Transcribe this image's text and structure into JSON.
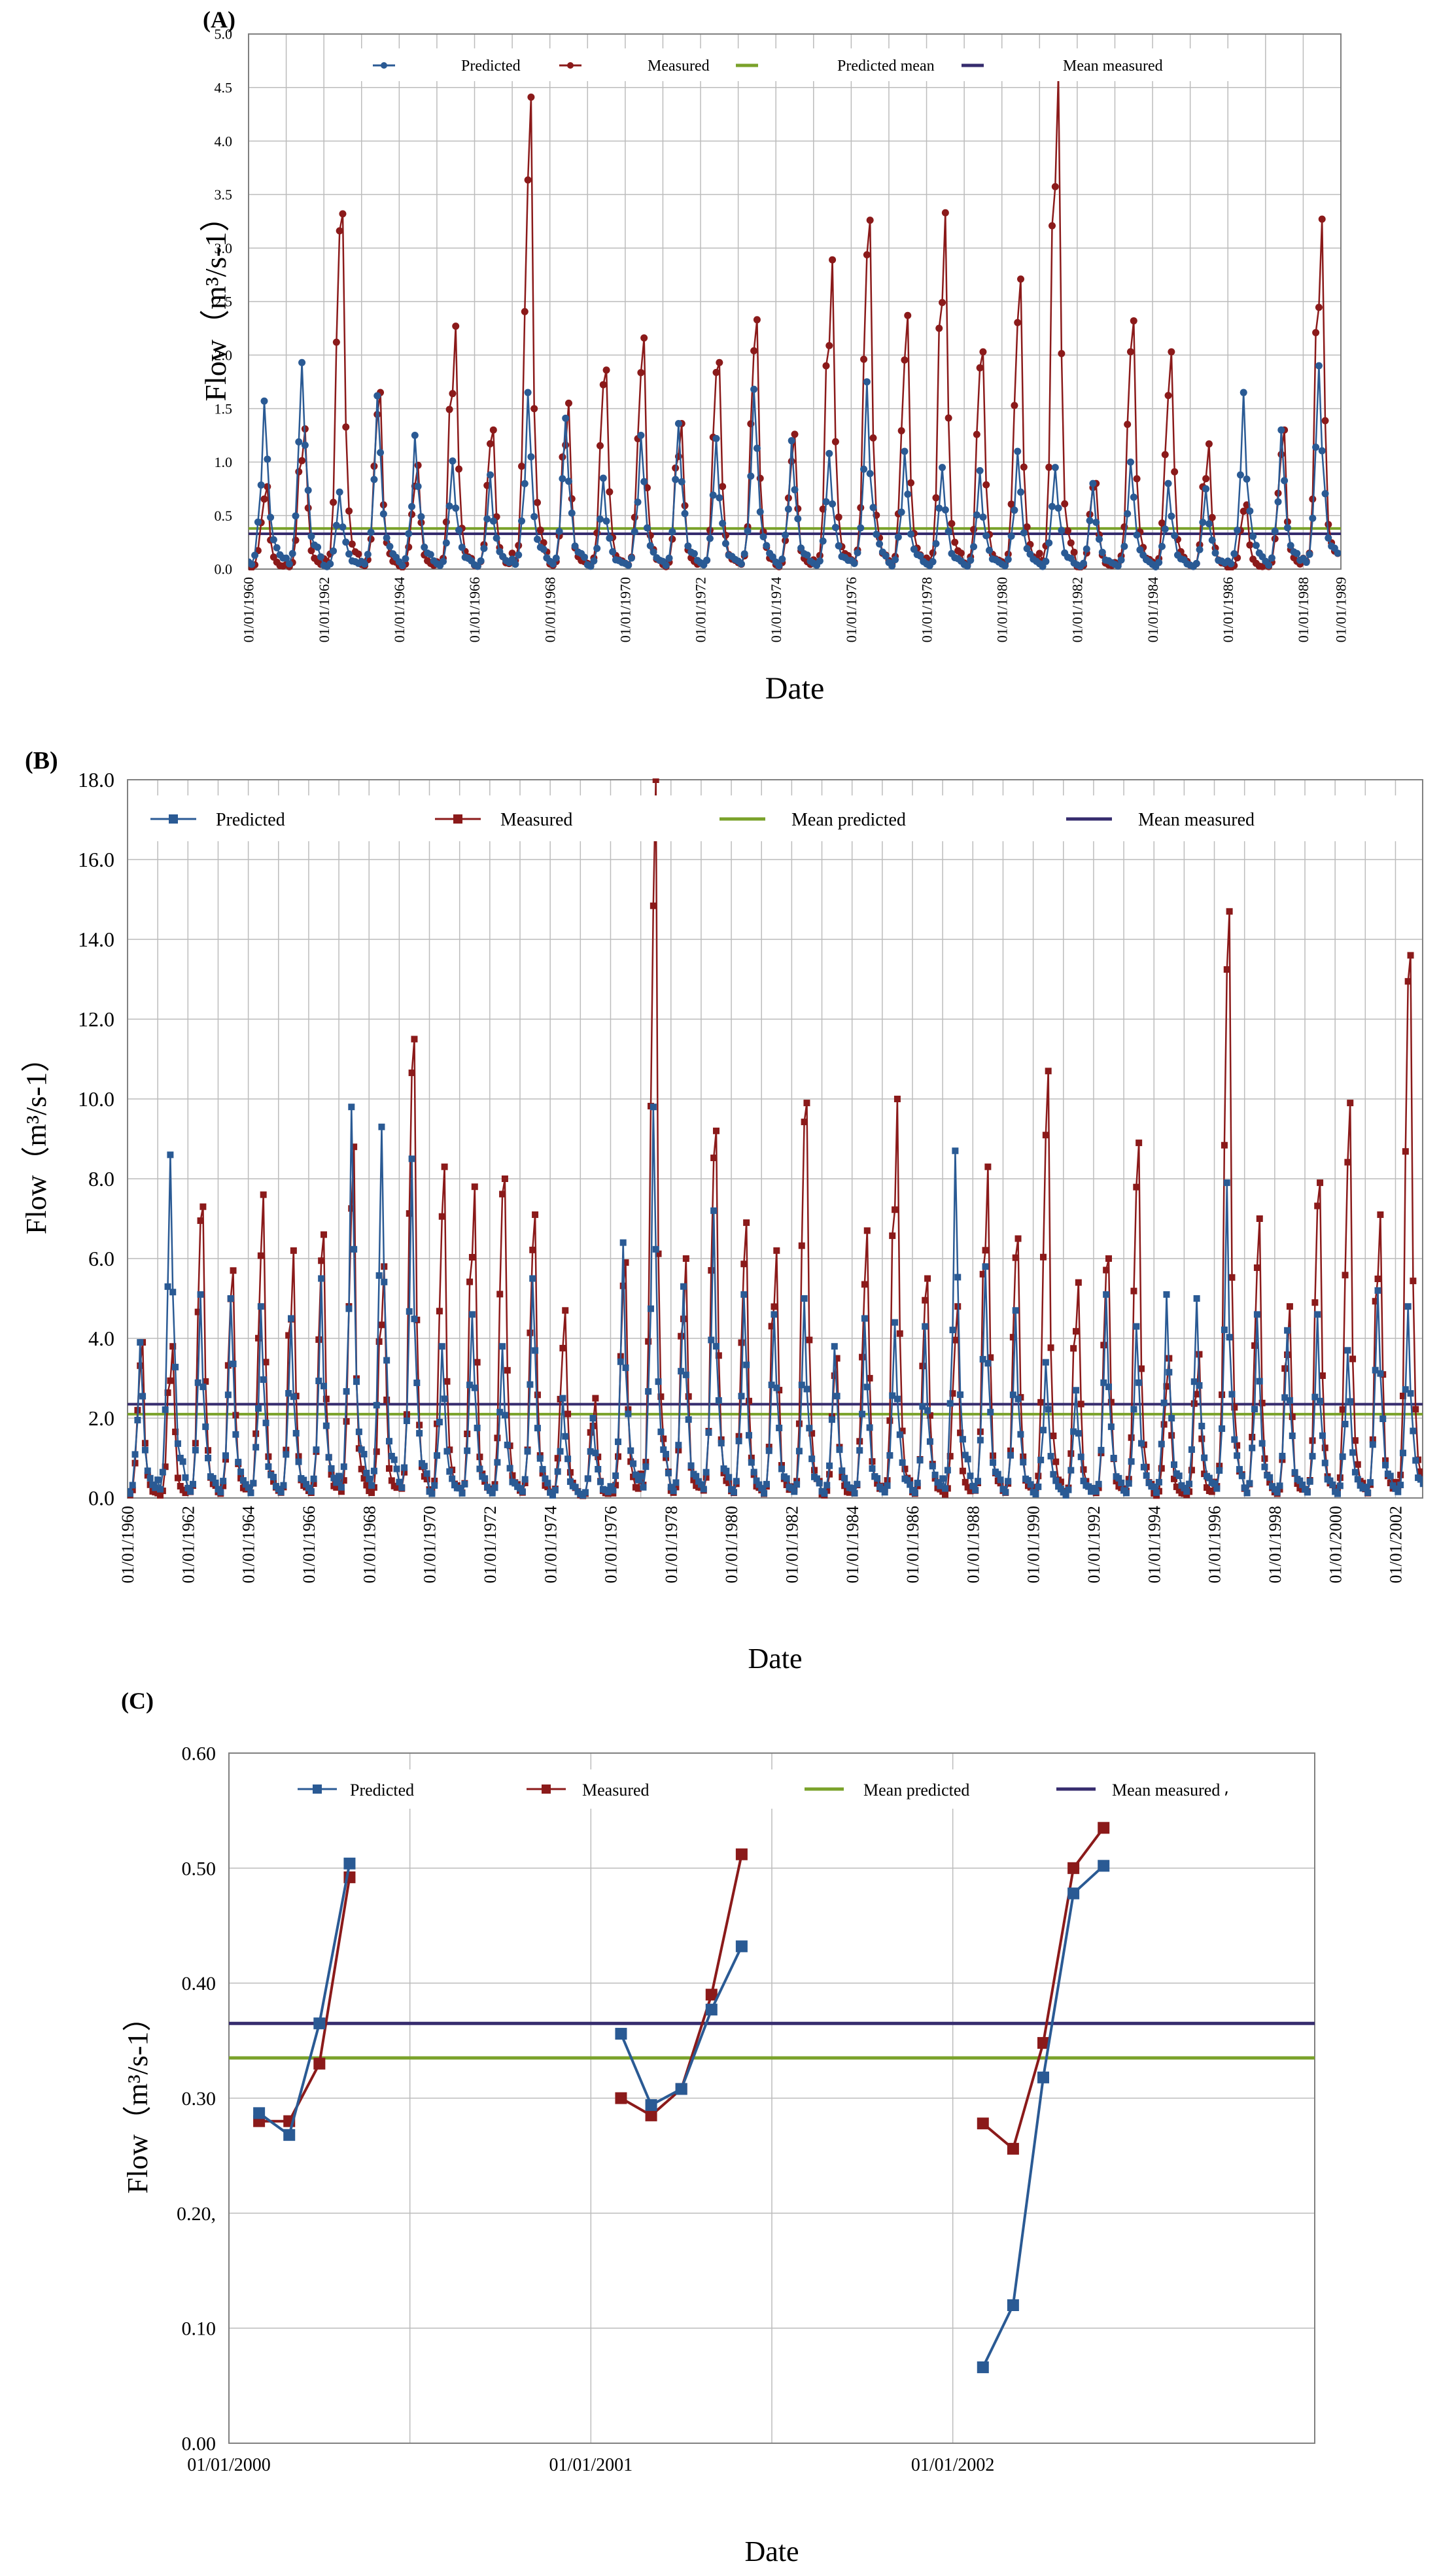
{
  "colors": {
    "predicted": "#2a5a94",
    "measured": "#8b1a1a",
    "mean_predicted": "#7aa22a",
    "mean_measured": "#362c6e",
    "grid": "#bcbcbc"
  },
  "chart_data": [
    {
      "panel": "(A)",
      "type": "line",
      "xlabel": "Date",
      "ylabel": "Flow（m³/s-1）",
      "ylim": [
        0,
        5
      ],
      "yticks": [
        "0.0",
        "0.5",
        "1.0",
        "1.5",
        "2.0",
        "2.5",
        "3.0",
        "3.5",
        "4.0",
        "4.5",
        "5.0"
      ],
      "xlim": [
        1960,
        1989
      ],
      "xticks": [
        "01/01/1960",
        "01/01/1962",
        "01/01/1964",
        "01/01/1966",
        "01/01/1968",
        "01/01/1970",
        "01/01/1972",
        "01/01/1974",
        "01/01/1976",
        "01/01/1978",
        "01/01/1980",
        "01/01/1982",
        "01/01/1984",
        "01/01/1986",
        "01/01/1988",
        "01/01/1989"
      ],
      "xtick_years": [
        1960,
        1962,
        1964,
        1966,
        1968,
        1970,
        1972,
        1974,
        1976,
        1978,
        1980,
        1982,
        1984,
        1986,
        1988,
        1989
      ],
      "legend": [
        "Predicted",
        "Measured",
        "Predicted mean",
        "Mean measured"
      ],
      "monthly_from": 1960,
      "series": [
        {
          "name": "Predicted",
          "annual_peaks": [
            1.57,
            1.93,
            0.72,
            1.62,
            1.25,
            1.01,
            0.88,
            1.65,
            1.41,
            0.85,
            1.25,
            1.36,
            1.22,
            1.68,
            1.2,
            1.08,
            1.75,
            1.1,
            0.95,
            0.92,
            1.1,
            0.95,
            0.8,
            1.0,
            0.8,
            0.75,
            1.65,
            1.3,
            1.9
          ]
        },
        {
          "name": "Measured",
          "annual_peaks": [
            0.77,
            1.31,
            3.32,
            1.65,
            0.97,
            2.27,
            1.3,
            4.41,
            1.55,
            1.86,
            2.16,
            1.36,
            1.93,
            2.33,
            1.26,
            2.89,
            3.26,
            2.37,
            3.33,
            2.03,
            2.71,
            4.62,
            0.8,
            2.32,
            2.03,
            1.17,
            0.6,
            1.3,
            3.27
          ]
        }
      ],
      "means": {
        "Predicted mean": 0.38,
        "Mean measured": 0.33
      }
    },
    {
      "panel": "(B)",
      "type": "line",
      "xlabel": "Date",
      "ylabel": "Flow（m³/s-1）",
      "ylim": [
        0,
        18
      ],
      "yticks": [
        "0.0",
        "2.0",
        "4.0",
        "6.0",
        "8.0",
        "10.0",
        "12.0",
        "14.0",
        "16.0",
        "18.0"
      ],
      "xlim": [
        1960,
        2002.9
      ],
      "xticks": [
        "01/01/1960",
        "01/01/1962",
        "01/01/1964",
        "01/01/1966",
        "01/01/1968",
        "01/01/1970",
        "01/01/1972",
        "01/01/1974",
        "01/01/1976",
        "01/01/1978",
        "01/01/1980",
        "01/01/1982",
        "01/01/1984",
        "01/01/1986",
        "01/01/1988",
        "01/01/1990",
        "01/01/1992",
        "01/01/1994",
        "01/01/1996",
        "01/01/1998",
        "01/01/2000",
        "01/01/2002"
      ],
      "xtick_years": [
        1960,
        1962,
        1964,
        1966,
        1968,
        1970,
        1972,
        1974,
        1976,
        1978,
        1980,
        1982,
        1984,
        1986,
        1988,
        1990,
        1992,
        1994,
        1996,
        1998,
        2000,
        2002
      ],
      "legend": [
        "Predicted",
        "Measured",
        "Mean predicted",
        "Mean measured"
      ],
      "monthly_from": 1960,
      "series": [
        {
          "name": "Predicted",
          "annual_peaks": [
            3.9,
            8.6,
            5.1,
            5.0,
            4.8,
            4.5,
            5.5,
            9.8,
            9.3,
            8.5,
            3.8,
            4.6,
            3.8,
            5.5,
            2.5,
            2.0,
            6.4,
            9.8,
            5.3,
            7.2,
            5.1,
            4.6,
            5.0,
            3.8,
            4.5,
            4.4,
            4.3,
            8.7,
            5.8,
            4.7,
            3.4,
            2.7,
            5.1,
            4.3,
            5.1,
            5.0,
            7.9,
            4.6,
            4.2,
            4.6,
            3.7,
            5.2,
            4.8
          ]
        },
        {
          "name": "Measured",
          "annual_peaks": [
            3.9,
            3.8,
            7.3,
            5.7,
            7.6,
            6.2,
            6.6,
            8.8,
            5.8,
            11.5,
            8.3,
            7.8,
            8.0,
            7.1,
            4.7,
            2.5,
            5.9,
            18.0,
            6.0,
            9.2,
            6.9,
            6.2,
            9.9,
            3.5,
            6.7,
            10.0,
            5.5,
            4.8,
            8.3,
            6.5,
            10.7,
            5.4,
            6.0,
            8.9,
            3.5,
            3.6,
            14.7,
            7.0,
            4.8,
            7.9,
            9.9,
            7.1,
            13.6
          ]
        }
      ],
      "means": {
        "Mean predicted": 2.1,
        "Mean measured": 2.35
      }
    },
    {
      "panel": "(C)",
      "type": "line",
      "xlabel": "Date",
      "ylabel": "Flow（m³/s-1）",
      "ylim": [
        0,
        0.6
      ],
      "yticks": [
        "0.00",
        "0.10",
        "0.20,",
        "0.30",
        "0.40",
        "0.50",
        "0.60"
      ],
      "xlim": [
        0,
        36
      ],
      "xticks": [
        "01/01/2000",
        "01/01/2001",
        "01/01/2002"
      ],
      "xtick_positions": [
        0,
        12,
        24
      ],
      "legend": [
        "Predicted",
        "Measured",
        "Mean predicted",
        "Mean measured ⸴"
      ],
      "series": [
        {
          "name": "Predicted",
          "segments": [
            {
              "x": [
                1,
                2,
                3,
                4
              ],
              "y": [
                0.287,
                0.268,
                0.365,
                0.504
              ]
            },
            {
              "x": [
                13,
                14,
                15,
                16,
                17
              ],
              "y": [
                0.356,
                0.294,
                0.308,
                0.377,
                0.432
              ]
            },
            {
              "x": [
                25,
                26,
                27,
                28,
                29
              ],
              "y": [
                0.066,
                0.12,
                0.318,
                0.478,
                0.502
              ]
            }
          ]
        },
        {
          "name": "Measured",
          "segments": [
            {
              "x": [
                1,
                2,
                3,
                4
              ],
              "y": [
                0.28,
                0.28,
                0.33,
                0.492
              ]
            },
            {
              "x": [
                13,
                14,
                15,
                16,
                17
              ],
              "y": [
                0.3,
                0.285,
                0.308,
                0.39,
                0.512
              ]
            },
            {
              "x": [
                25,
                26,
                27,
                28,
                29
              ],
              "y": [
                0.278,
                0.256,
                0.348,
                0.5,
                0.535
              ]
            }
          ]
        }
      ],
      "means": {
        "Mean predicted": 0.335,
        "Mean measured": 0.365
      }
    }
  ]
}
